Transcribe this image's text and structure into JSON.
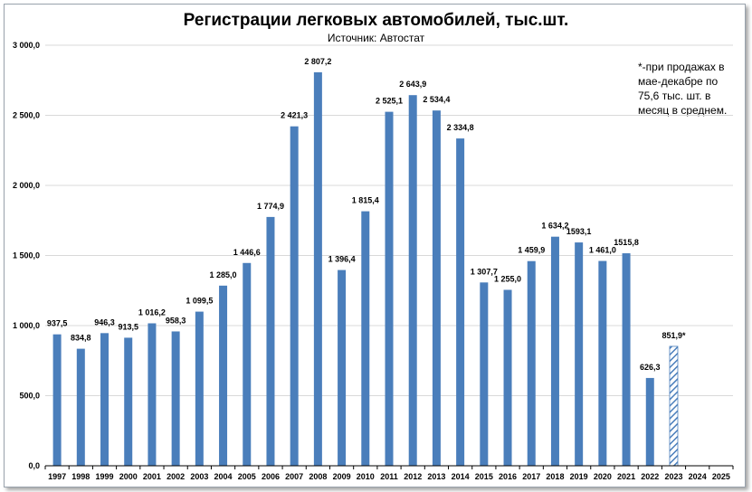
{
  "chart_data": {
    "type": "bar",
    "title": "Регистрации легковых автомобилей, тыс.шт.",
    "subtitle": "Источник: Автостат",
    "note": "*-при продажах в мае-декабре по 75,6 тыс. шт. в месяц в среднем.",
    "categories": [
      "1997",
      "1998",
      "1999",
      "2000",
      "2001",
      "2002",
      "2003",
      "2004",
      "2005",
      "2006",
      "2007",
      "2008",
      "2009",
      "2010",
      "2011",
      "2012",
      "2013",
      "2014",
      "2015",
      "2016",
      "2017",
      "2018",
      "2019",
      "2020",
      "2021",
      "2022",
      "2023",
      "2024",
      "2025"
    ],
    "values": [
      937.5,
      834.8,
      946.3,
      913.5,
      1016.2,
      958.3,
      1099.5,
      1285.0,
      1446.6,
      1774.9,
      2421.3,
      2807.2,
      1396.4,
      1815.4,
      2525.1,
      2643.9,
      2534.4,
      2334.8,
      1307.7,
      1255.0,
      1459.9,
      1634.2,
      1593.1,
      1461.0,
      1515.8,
      626.3,
      851.9,
      null,
      null
    ],
    "data_labels": [
      "937,5",
      "834,8",
      "946,3",
      "913,5",
      "1 016,2",
      "958,3",
      "1 099,5",
      "1 285,0",
      "1 446,6",
      "1 774,9",
      "2 421,3",
      "2 807,2",
      "1 396,4",
      "1 815,4",
      "2 525,1",
      "2 643,9",
      "2 534,4",
      "2 334,8",
      "1 307,7",
      "1 255,0",
      "1 459,9",
      "1 634,2",
      "1593,1",
      "1 461,0",
      "1515,8",
      "626,3",
      "851,9*",
      "",
      ""
    ],
    "forecast_index": 26,
    "ylim": [
      0,
      3000
    ],
    "yticks": [
      0,
      500,
      1000,
      1500,
      2000,
      2500,
      3000
    ],
    "ytick_labels": [
      "0,0",
      "500,0",
      "1 000,0",
      "1 500,0",
      "2 000,0",
      "2 500,0",
      "3 000,0"
    ],
    "grid": true,
    "colors": {
      "bar": "#4a7ebb",
      "grid": "#d9d9d9",
      "axis": "#000000"
    }
  }
}
